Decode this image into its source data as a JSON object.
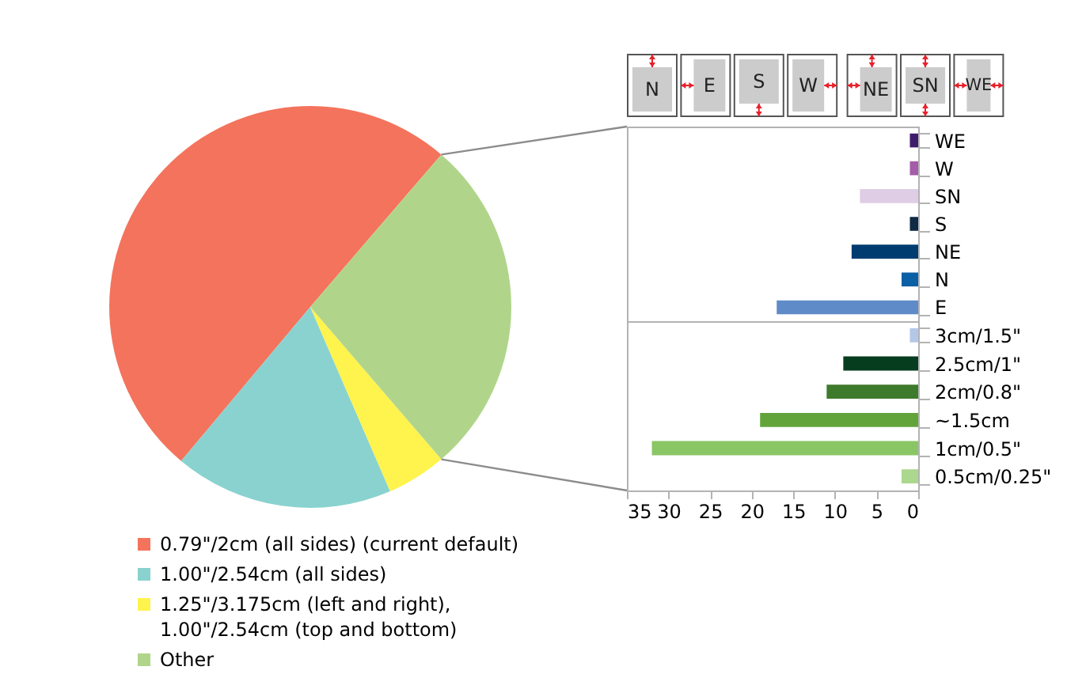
{
  "chart_data": [
    {
      "type": "pie",
      "categories": [
        "0.79\"/2cm (all sides) (current default)",
        "1.00\"/2.54cm (all sides)",
        "1.25\"/3.175cm (left and right), 1.00\"/2.54cm (top and bottom)",
        "Other"
      ],
      "values": [
        50.2,
        17.6,
        4.8,
        27.4
      ],
      "colors": [
        "#f4735c",
        "#89d2cf",
        "#fff34d",
        "#b0d58a"
      ],
      "legend": "bottom"
    },
    {
      "type": "bar",
      "orientation": "horizontal",
      "categories": [
        "WE",
        "W",
        "SN",
        "S",
        "NE",
        "N",
        "E"
      ],
      "values": [
        1,
        1,
        7,
        1,
        8,
        2,
        17
      ],
      "colors": [
        "#3f1c6b",
        "#a55ca9",
        "#dfcde5",
        "#0f2a45",
        "#003c70",
        "#0b5fa5",
        "#5f8bc8"
      ],
      "xlim": [
        35,
        0
      ],
      "tick_labels": "y",
      "annotations": [
        "N",
        "E",
        "S",
        "W",
        "NE",
        "SN",
        "WE"
      ]
    },
    {
      "type": "bar",
      "orientation": "horizontal",
      "categories": [
        "3cm/1.5\"",
        "2.5cm/1\"",
        "2cm/0.8\"",
        "~1.5cm",
        "1cm/0.5\"",
        "0.5cm/0.25\""
      ],
      "values": [
        1,
        9,
        11,
        19,
        32,
        2
      ],
      "colors": [
        "#b4c7e7",
        "#073d1f",
        "#3e7a2b",
        "#62a43a",
        "#8ac665",
        "#acd78e"
      ],
      "xlim": [
        35,
        0
      ],
      "xticks": [
        35,
        30,
        25,
        20,
        15,
        10,
        5,
        0
      ]
    }
  ]
}
